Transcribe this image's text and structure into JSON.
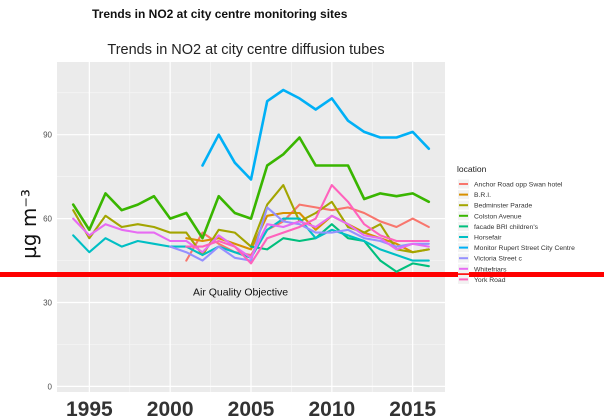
{
  "slide_title": "Trends in NO2 at city centre monitoring sites",
  "colors": {
    "panel_bg": "#ebebeb",
    "grid_major": "#ffffff",
    "objective_line": "#ff0000"
  },
  "chart_data": {
    "type": "line",
    "title": "Trends in NO2 at city centre diffusion tubes",
    "xlabel": "",
    "ylabel": "µg m⁻³",
    "xlim": [
      1993,
      2017
    ],
    "ylim": [
      -2,
      116
    ],
    "x_ticks": [
      1995,
      2000,
      2005,
      2010,
      2015
    ],
    "y_ticks": [
      0,
      30,
      60,
      90
    ],
    "grid": true,
    "legend": {
      "title": "location",
      "position": "right"
    },
    "objective": {
      "value": 40,
      "label": "Air Quality Objective",
      "color": "#ff0000"
    },
    "x": [
      1994,
      1995,
      1996,
      1997,
      1998,
      1999,
      2000,
      2001,
      2002,
      2003,
      2004,
      2005,
      2006,
      2007,
      2008,
      2009,
      2010,
      2011,
      2012,
      2013,
      2014,
      2015,
      2016
    ],
    "series": [
      {
        "name": "Anchor Road opp Swan hotel",
        "color": "#f8766d",
        "values": [
          null,
          null,
          null,
          null,
          null,
          null,
          null,
          45,
          55,
          51,
          48,
          47,
          56,
          59,
          65,
          64,
          63,
          64,
          62,
          59,
          57,
          60,
          57
        ]
      },
      {
        "name": "B.R.I.",
        "color": "#d89000",
        "values": [
          null,
          null,
          null,
          null,
          null,
          null,
          null,
          53,
          52,
          53,
          51,
          49,
          61,
          62,
          62,
          56,
          61,
          58,
          55,
          53,
          51,
          48,
          49
        ]
      },
      {
        "name": "Bedminster Parade",
        "color": "#a3a500",
        "values": [
          63,
          53,
          61,
          57,
          58,
          57,
          55,
          55,
          47,
          56,
          55,
          50,
          65,
          72,
          59,
          62,
          66,
          57,
          55,
          58,
          49,
          48,
          49
        ]
      },
      {
        "name": "Colston Avenue",
        "color": "#39b600",
        "values": [
          65,
          56,
          69,
          63,
          65,
          68,
          60,
          62,
          53,
          68,
          62,
          60,
          79,
          83,
          89,
          79,
          79,
          79,
          67,
          69,
          68,
          69,
          66
        ]
      },
      {
        "name": "facade BRI children's",
        "color": "#00bf7d",
        "values": [
          null,
          null,
          null,
          null,
          null,
          null,
          null,
          null,
          null,
          null,
          null,
          50,
          49,
          53,
          52,
          53,
          58,
          53,
          52,
          45,
          41,
          44,
          43
        ]
      },
      {
        "name": "Horsefair",
        "color": "#00bfc4",
        "values": [
          54,
          48,
          53,
          50,
          52,
          51,
          50,
          50,
          47,
          50,
          48,
          46,
          56,
          60,
          60,
          53,
          56,
          54,
          52,
          49,
          47,
          45,
          45
        ]
      },
      {
        "name": "Monitor    Rupert Street City Centre",
        "color": "#00b0f6",
        "values": [
          null,
          null,
          null,
          null,
          null,
          null,
          null,
          null,
          79,
          90,
          80,
          74,
          102,
          106,
          103,
          99,
          103,
          95,
          91,
          89,
          89,
          91,
          85
        ]
      },
      {
        "name": "Victoria Street c",
        "color": "#9590ff",
        "values": [
          null,
          null,
          null,
          null,
          null,
          null,
          50,
          48,
          45,
          50,
          46,
          45,
          64,
          59,
          58,
          55,
          55,
          56,
          53,
          52,
          50,
          51,
          51
        ]
      },
      {
        "name": "Whitefriars",
        "color": "#e76bf3",
        "values": [
          60,
          54,
          58,
          56,
          55,
          55,
          52,
          52,
          48,
          54,
          50,
          46,
          58,
          57,
          59,
          57,
          61,
          58,
          54,
          53,
          49,
          51,
          50
        ]
      },
      {
        "name": "York Road",
        "color": "#ff62bc",
        "values": [
          null,
          null,
          null,
          null,
          null,
          null,
          null,
          50,
          50,
          52,
          50,
          44,
          53,
          55,
          57,
          60,
          72,
          66,
          58,
          54,
          52,
          52,
          52
        ]
      }
    ]
  }
}
